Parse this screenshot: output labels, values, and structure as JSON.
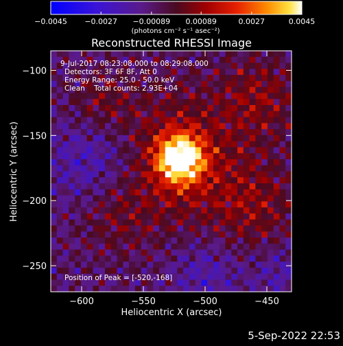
{
  "chart_data": {
    "type": "heatmap",
    "title": "Reconstructed RHESSI Image",
    "xlabel": "Heliocentric X (arcsec)",
    "ylabel": "Heliocentric Y (arcsec)",
    "xlim": [
      -625,
      -430
    ],
    "ylim": [
      -270,
      -85
    ],
    "x_ticks": [
      -600,
      -550,
      -500,
      -450
    ],
    "y_ticks": [
      -250,
      -200,
      -150,
      -100
    ],
    "x_tick_labels": [
      "−600",
      "−550",
      "−500",
      "−450"
    ],
    "y_tick_labels": [
      "−250",
      "−200",
      "−150",
      "−100"
    ],
    "colorbar": {
      "range": [
        -0.0045,
        0.0045
      ],
      "ticks": [
        -0.0045,
        -0.0027,
        -0.00089,
        0.00089,
        0.0027,
        0.0045
      ],
      "tick_labels": [
        "−0.0045",
        "−0.0027",
        "−0.00089",
        "0.00089",
        "0.0027",
        "0.0045"
      ],
      "label": "(photons cm⁻² s⁻¹ asec⁻²)"
    },
    "peak": {
      "x": -520,
      "y": -168
    },
    "annotations": {
      "time": "9-Jul-2017 08:23:08.000 to 08:29:08.000",
      "detectors": "Detectors: 3F 6F 8F, Att 0",
      "energy": "Energy Range: 25.0 - 50.0 keV",
      "method": "Clean    Total counts: 2.93E+04",
      "peak": "Position of Peak = [-520,-168]"
    }
  },
  "footer": {
    "timestamp": "5-Sep-2022 22:53"
  }
}
